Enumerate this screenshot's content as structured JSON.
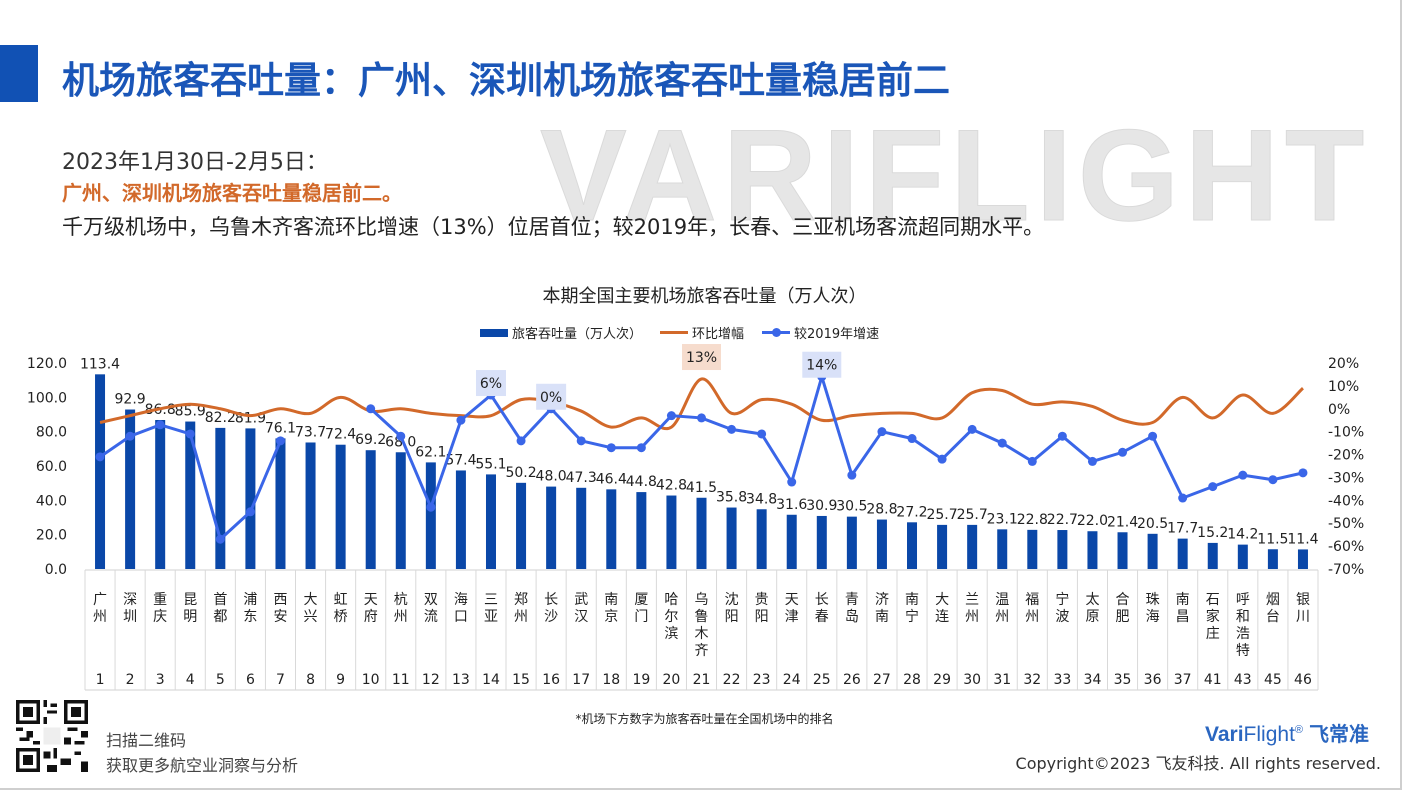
{
  "header": {
    "title": "机场旅客吞吐量：广州、深圳机场旅客吞吐量稳居前二"
  },
  "summary": {
    "period": "2023年1月30日-2月5日：",
    "highlight": "广州、深圳机场旅客吞吐量稳居前二。",
    "detail": "千万级机场中，乌鲁木齐客流环比增速（13%）位居首位；较2019年，长春、三亚机场客流超同期水平。"
  },
  "watermark": "VARIFLIGHT",
  "colors": {
    "bar": "#0a47a8",
    "mom": "#d2692a",
    "vs2019": "#3a66e8",
    "title": "#1a56b8"
  },
  "chart_data": {
    "type": "bar",
    "title": "本期全国主要机场旅客吞吐量（万人次）",
    "legend_position": "top",
    "categories": [
      "广州",
      "深圳",
      "重庆",
      "昆明",
      "首都",
      "浦东",
      "西安",
      "大兴",
      "虹桥",
      "天府",
      "杭州",
      "双流",
      "海口",
      "三亚",
      "郑州",
      "长沙",
      "武汉",
      "南京",
      "厦门",
      "哈尔滨",
      "乌鲁木齐",
      "沈阳",
      "贵阳",
      "天津",
      "长春",
      "青岛",
      "济南",
      "南宁",
      "大连",
      "兰州",
      "温州",
      "福州",
      "宁波",
      "太原",
      "合肥",
      "珠海",
      "南昌",
      "石家庄",
      "呼和浩特",
      "烟台",
      "银川"
    ],
    "ranks": [
      "1",
      "2",
      "3",
      "4",
      "5",
      "6",
      "7",
      "8",
      "9",
      "10",
      "11",
      "12",
      "13",
      "14",
      "15",
      "16",
      "17",
      "18",
      "19",
      "20",
      "21",
      "22",
      "23",
      "24",
      "25",
      "26",
      "27",
      "28",
      "29",
      "30",
      "31",
      "32",
      "33",
      "34",
      "35",
      "36",
      "37",
      "41",
      "43",
      "45",
      "46"
    ],
    "series": [
      {
        "name": "旅客吞吐量（万人次）",
        "type": "bar",
        "axis": "left",
        "values": [
          113.4,
          92.9,
          86.8,
          85.9,
          82.2,
          81.9,
          76.1,
          73.7,
          72.4,
          69.2,
          68.0,
          62.1,
          57.4,
          55.1,
          50.2,
          48.0,
          47.3,
          46.4,
          44.8,
          42.8,
          41.5,
          35.8,
          34.8,
          31.6,
          30.9,
          30.5,
          28.8,
          27.2,
          25.7,
          25.7,
          23.1,
          22.8,
          22.7,
          22.0,
          21.4,
          20.5,
          17.7,
          15.2,
          14.2,
          11.5,
          11.4
        ]
      },
      {
        "name": "环比增幅",
        "type": "line",
        "axis": "right",
        "smooth": true,
        "values": [
          -6,
          -3,
          0,
          2,
          0,
          -3,
          0,
          -2,
          5,
          -1,
          0,
          -2,
          -3,
          -3,
          4,
          3,
          -1,
          -8,
          -4,
          -8,
          13,
          -2,
          4,
          2,
          -5,
          -3,
          -2,
          -2,
          -4,
          7,
          8,
          2,
          3,
          1,
          -5,
          -6,
          5,
          -4,
          6,
          -2,
          9
        ]
      },
      {
        "name": "较2019年增速",
        "type": "line",
        "axis": "right",
        "markers": true,
        "values": [
          -21,
          -12,
          -7,
          -11,
          -57,
          -45,
          -14,
          null,
          null,
          0,
          -12,
          -43,
          -5,
          6,
          -14,
          0,
          -14,
          -17,
          -17,
          -3,
          -4,
          -9,
          -11,
          -32,
          14,
          -29,
          -10,
          -13,
          -22,
          -9,
          -15,
          -23,
          -12,
          -23,
          -19,
          -12,
          -39,
          -34,
          -29,
          -31,
          -28
        ]
      }
    ],
    "value_labels": [
      "113.4",
      "92.9",
      "86.8",
      "85.9",
      "82.2",
      "81.9",
      "76.1",
      "73.7",
      "72.4",
      "69.2",
      "68.0",
      "62.1",
      "57.4",
      "55.1",
      "50.2",
      "48.0",
      "47.3",
      "46.4",
      "44.8",
      "42.8",
      "41.5",
      "35.8",
      "34.8",
      "31.6",
      "30.9",
      "30.5",
      "28.8",
      "27.2",
      "25.7",
      "25.7",
      "23.1",
      "22.8",
      "22.7",
      "22.0",
      "21.4",
      "20.5",
      "17.7",
      "15.2",
      "14.2",
      "11.5",
      "11.4"
    ],
    "callouts": [
      {
        "series": "较2019年增速",
        "category": "三亚",
        "text": "6%"
      },
      {
        "series": "较2019年增速",
        "category": "长沙",
        "text": "0%"
      },
      {
        "series": "较2019年增速",
        "category": "长春",
        "text": "14%"
      },
      {
        "series": "环比增幅",
        "category": "乌鲁木齐",
        "text": "13%"
      }
    ],
    "ylim_left": [
      0,
      120
    ],
    "yticks_left": [
      "0.0",
      "20.0",
      "40.0",
      "60.0",
      "80.0",
      "100.0",
      "120.0"
    ],
    "ylim_right": [
      -70,
      20
    ],
    "yticks_right": [
      "-70%",
      "-60%",
      "-50%",
      "-40%",
      "-30%",
      "-20%",
      "-10%",
      "0%",
      "10%",
      "20%"
    ],
    "grid": false
  },
  "footnote": "*机场下方数字为旅客吞吐量在全国机场中的排名",
  "footer": {
    "qr_line1": "扫描二维码",
    "qr_line2": "获取更多航空业洞察与分析",
    "brand_bold": "Vari",
    "brand_rest": "Flight",
    "brand_mark": "®",
    "brand_cn": "飞常准",
    "copyright": "Copyright©2023 飞友科技. All rights reserved."
  }
}
